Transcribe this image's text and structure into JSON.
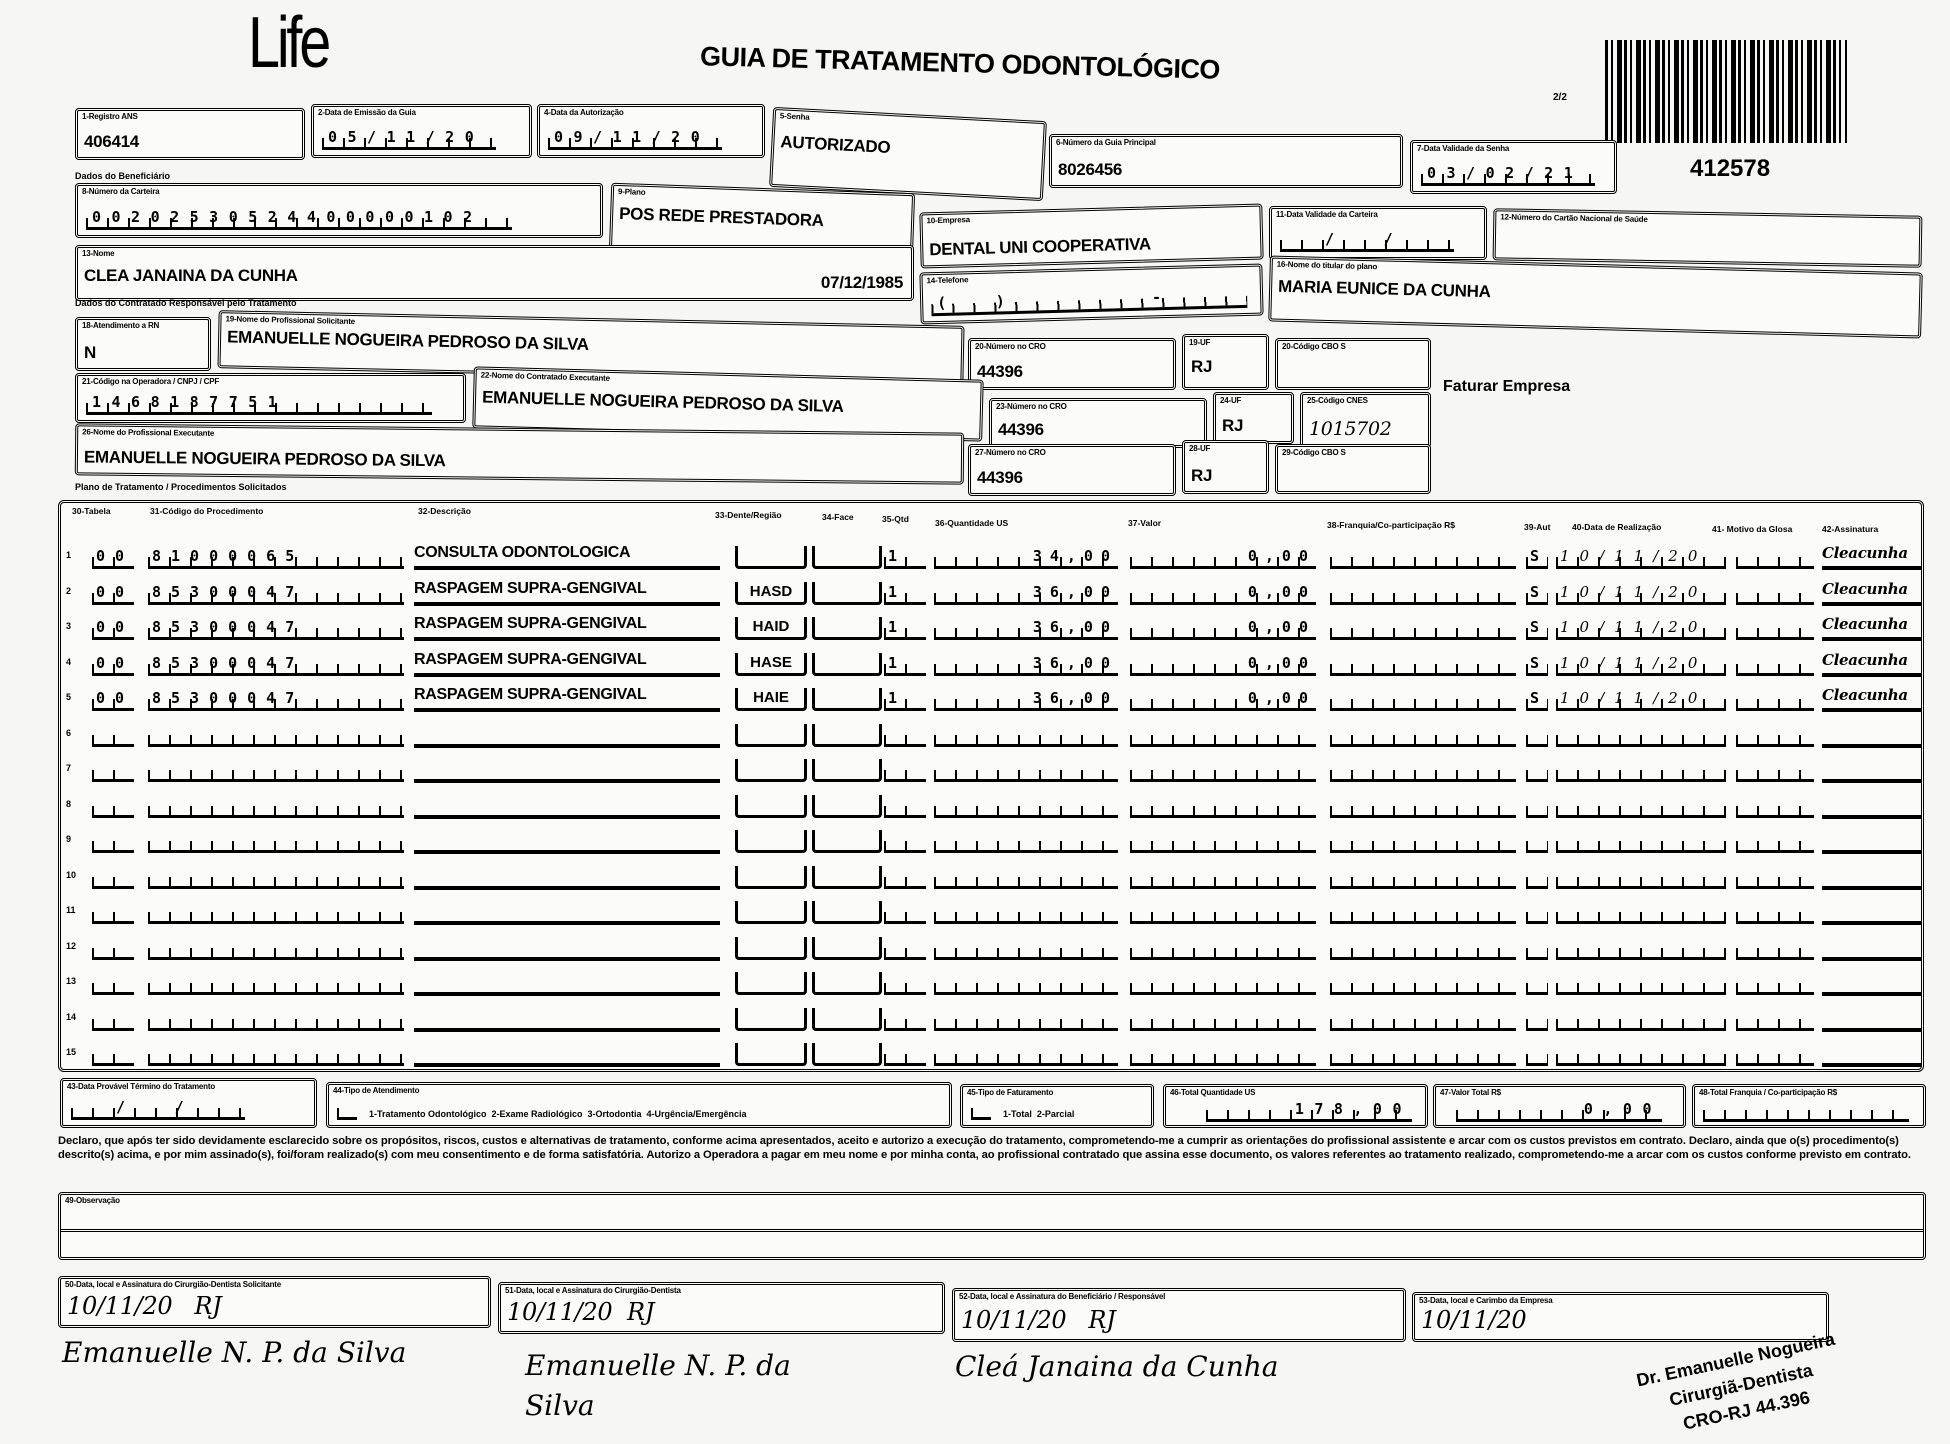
{
  "header": {
    "logo": "Life",
    "title": "GUIA DE TRATAMENTO ODONTOLÓGICO",
    "page": "2/2",
    "guide_number": "412578"
  },
  "fields": {
    "registro_ans": {
      "label": "1-Registro ANS",
      "value": "406414"
    },
    "data_emissao": {
      "label": "2-Data de Emissão da Guia",
      "value": "05/11/20"
    },
    "data_autorizacao": {
      "label": "4-Data da Autorização",
      "value": "09/11/20"
    },
    "senha": {
      "label": "5-Senha",
      "value": "AUTORIZADO"
    },
    "guia_principal": {
      "label": "6-Número da Guia Principal",
      "value": "8026456"
    },
    "validade_senha": {
      "label": "7-Data Validade da Senha",
      "value": "03/02/21"
    },
    "beneficiario_section": "Dados do Beneficiário",
    "carteira": {
      "label": "8-Número da Carteira",
      "value": "00202530524400000102"
    },
    "plano": {
      "label": "9-Plano",
      "value": "POS REDE PRESTADORA"
    },
    "empresa": {
      "label": "10-Empresa",
      "value": "DENTAL UNI  COOPERATIVA"
    },
    "validade_carteira": {
      "label": "11-Data Validade da Carteira",
      "value": "  /  /  "
    },
    "cartao_nacional": {
      "label": "12-Número do Cartão Nacional de Saúde",
      "value": ""
    },
    "nome": {
      "label": "13-Nome",
      "value": "CLEA JANAINA DA CUNHA",
      "birth_date": "07/12/1985"
    },
    "telefone": {
      "label": "14-Telefone",
      "value": "(  )       -    "
    },
    "titular": {
      "label": "16-Nome do titular do plano",
      "value": "MARIA EUNICE DA CUNHA"
    },
    "contratado_section": "Dados do Contratado Responsável pelo Tratamento",
    "atendimento_rn": {
      "label": "18-Atendimento a RN",
      "value": "N"
    },
    "profissional_solicitante": {
      "label": "19-Nome do Profissional Solicitante",
      "value": "EMANUELLE NOGUEIRA PEDROSO DA SILVA"
    },
    "cro_solicitante": {
      "label": "20-Número no CRO",
      "value": "44396"
    },
    "uf_solicitante": {
      "label": "19-UF",
      "value": "RJ"
    },
    "cbo_solicitante": {
      "label": "20-Código CBO S",
      "value": ""
    },
    "codigo_operadora": {
      "label": "21-Código na Operadora / CNPJ / CPF",
      "value": "1468187751   "
    },
    "contratado_executante": {
      "label": "22-Nome do Contratado Executante",
      "value": "EMANUELLE NOGUEIRA PEDROSO DA SILVA"
    },
    "cro_contratado": {
      "label": "23-Número no CRO",
      "value": "44396"
    },
    "uf_contratado": {
      "label": "24-UF",
      "value": "RJ"
    },
    "cnes": {
      "label": "25-Código CNES",
      "value": "1015702"
    },
    "faturar": "Faturar Empresa",
    "profissional_executante": {
      "label": "26-Nome do Profissional Executante",
      "value": "EMANUELLE NOGUEIRA PEDROSO DA SILVA"
    },
    "cro_executante": {
      "label": "27-Número no CRO",
      "value": "44396"
    },
    "uf_executante": {
      "label": "28-UF",
      "value": "RJ"
    },
    "cbo_executante": {
      "label": "29-Código CBO S",
      "value": ""
    }
  },
  "plan": {
    "section": "Plano de Tratamento / Procedimentos Solicitados",
    "headers": {
      "tabela": "30-Tabela",
      "codigo": "31-Código do Procedimento",
      "descricao": "32-Descrição",
      "dente": "33-Dente/Região",
      "face": "34-Face",
      "qtd": "35-Qtd",
      "qtd_us": "36-Quantidade US",
      "valor": "37-Valor",
      "franquia": "38-Franquia/Co-participação R$",
      "aut": "39-Aut",
      "data": "40-Data de Realização",
      "glosa": "41- Motivo da Glosa",
      "assinatura": "42-Assinatura"
    },
    "rows": [
      {
        "n": "1",
        "tabela": "00",
        "codigo": "81000065",
        "descricao": "CONSULTA ODONTOLOGICA",
        "dente": "",
        "face": "",
        "qtd": "1",
        "qtd_us": "34,00",
        "valor": "0,00",
        "franquia": "",
        "aut": "S",
        "data": "10/11/20",
        "glosa": "",
        "assinatura": "Cleacunha"
      },
      {
        "n": "2",
        "tabela": "00",
        "codigo": "85300047",
        "descricao": "RASPAGEM SUPRA-GENGIVAL",
        "dente": "HASD",
        "face": "",
        "qtd": "1",
        "qtd_us": "36,00",
        "valor": "0,00",
        "franquia": "",
        "aut": "S",
        "data": "10/11/20",
        "glosa": "",
        "assinatura": "Cleacunha"
      },
      {
        "n": "3",
        "tabela": "00",
        "codigo": "85300047",
        "descricao": "RASPAGEM SUPRA-GENGIVAL",
        "dente": "HAID",
        "face": "",
        "qtd": "1",
        "qtd_us": "36,00",
        "valor": "0,00",
        "franquia": "",
        "aut": "S",
        "data": "10/11/20",
        "glosa": "",
        "assinatura": "Cleacunha"
      },
      {
        "n": "4",
        "tabela": "00",
        "codigo": "85300047",
        "descricao": "RASPAGEM SUPRA-GENGIVAL",
        "dente": "HASE",
        "face": "",
        "qtd": "1",
        "qtd_us": "36,00",
        "valor": "0,00",
        "franquia": "",
        "aut": "S",
        "data": "10/11/20",
        "glosa": "",
        "assinatura": "Cleacunha"
      },
      {
        "n": "5",
        "tabela": "00",
        "codigo": "85300047",
        "descricao": "RASPAGEM SUPRA-GENGIVAL",
        "dente": "HAIE",
        "face": "",
        "qtd": "1",
        "qtd_us": "36,00",
        "valor": "0,00",
        "franquia": "",
        "aut": "S",
        "data": "10/11/20",
        "glosa": "",
        "assinatura": "Cleacunha"
      },
      {
        "n": "6",
        "tabela": "",
        "codigo": "",
        "descricao": "",
        "dente": "",
        "face": "",
        "qtd": "",
        "qtd_us": "",
        "valor": "",
        "franquia": "",
        "aut": "",
        "data": "",
        "glosa": "",
        "assinatura": ""
      },
      {
        "n": "7",
        "tabela": "",
        "codigo": "",
        "descricao": "",
        "dente": "",
        "face": "",
        "qtd": "",
        "qtd_us": "",
        "valor": "",
        "franquia": "",
        "aut": "",
        "data": "",
        "glosa": "",
        "assinatura": ""
      },
      {
        "n": "8",
        "tabela": "",
        "codigo": "",
        "descricao": "",
        "dente": "",
        "face": "",
        "qtd": "",
        "qtd_us": "",
        "valor": "",
        "franquia": "",
        "aut": "",
        "data": "",
        "glosa": "",
        "assinatura": ""
      },
      {
        "n": "9",
        "tabela": "",
        "codigo": "",
        "descricao": "",
        "dente": "",
        "face": "",
        "qtd": "",
        "qtd_us": "",
        "valor": "",
        "franquia": "",
        "aut": "",
        "data": "",
        "glosa": "",
        "assinatura": ""
      },
      {
        "n": "10",
        "tabela": "",
        "codigo": "",
        "descricao": "",
        "dente": "",
        "face": "",
        "qtd": "",
        "qtd_us": "",
        "valor": "",
        "franquia": "",
        "aut": "",
        "data": "",
        "glosa": "",
        "assinatura": ""
      },
      {
        "n": "11",
        "tabela": "",
        "codigo": "",
        "descricao": "",
        "dente": "",
        "face": "",
        "qtd": "",
        "qtd_us": "",
        "valor": "",
        "franquia": "",
        "aut": "",
        "data": "",
        "glosa": "",
        "assinatura": ""
      },
      {
        "n": "12",
        "tabela": "",
        "codigo": "",
        "descricao": "",
        "dente": "",
        "face": "",
        "qtd": "",
        "qtd_us": "",
        "valor": "",
        "franquia": "",
        "aut": "",
        "data": "",
        "glosa": "",
        "assinatura": ""
      },
      {
        "n": "13",
        "tabela": "",
        "codigo": "",
        "descricao": "",
        "dente": "",
        "face": "",
        "qtd": "",
        "qtd_us": "",
        "valor": "",
        "franquia": "",
        "aut": "",
        "data": "",
        "glosa": "",
        "assinatura": ""
      },
      {
        "n": "14",
        "tabela": "",
        "codigo": "",
        "descricao": "",
        "dente": "",
        "face": "",
        "qtd": "",
        "qtd_us": "",
        "valor": "",
        "franquia": "",
        "aut": "",
        "data": "",
        "glosa": "",
        "assinatura": ""
      },
      {
        "n": "15",
        "tabela": "",
        "codigo": "",
        "descricao": "",
        "dente": "",
        "face": "",
        "qtd": "",
        "qtd_us": "",
        "valor": "",
        "franquia": "",
        "aut": "",
        "data": "",
        "glosa": "",
        "assinatura": ""
      }
    ]
  },
  "totals": {
    "termino": {
      "label": "43-Data Provável Término do Tratamento",
      "value": "  /  /  "
    },
    "tipo_atendimento": {
      "label": "44-Tipo de Atendimento",
      "options": "1-Tratamento Odontológico  2-Exame Radiológico  3-Ortodontia  4-Urgência/Emergência",
      "value": ""
    },
    "tipo_faturamento": {
      "label": "45-Tipo de Faturamento",
      "options": "1-Total  2-Parcial",
      "value": ""
    },
    "total_us": {
      "label": "46-Total Quantidade US",
      "value": "178,00"
    },
    "valor_total": {
      "label": "47-Valor Total R$",
      "value": "0,00"
    },
    "total_franquia": {
      "label": "48-Total Franquia / Co-participação R$",
      "value": ""
    }
  },
  "declaration": "Declaro, que após ter sido devidamente esclarecido sobre os propósitos, riscos, custos e alternativas de tratamento, conforme acima apresentados, aceito e autorizo a execução do tratamento, comprometendo-me a cumprir as orientações do profissional assistente e arcar com os custos previstos em contrato. Declaro, ainda que o(s) procedimento(s) descrito(s) acima, e por mim assinado(s), foi/foram realizado(s) com meu consentimento e de forma satisfatória. Autorizo a Operadora a pagar em meu nome e por minha conta, ao profissional contratado que assina esse documento, os valores referentes ao tratamento realizado, comprometendo-me a arcar com os custos conforme previsto em contrato.",
  "observacao": {
    "label": "49-Observação",
    "value": ""
  },
  "signatures": [
    {
      "label": "50-Data, local e Assinatura do Cirurgião-Dentista Solicitante",
      "value": "10/11/20   RJ",
      "signature": "Emanuelle N. P. da Silva"
    },
    {
      "label": "51-Data, local e Assinatura do Cirurgião-Dentista",
      "value": "10/11/20  RJ",
      "signature": "Emanuelle N. P. da Silva"
    },
    {
      "label": "52-Data, local e Assinatura do Beneficiário / Responsável",
      "value": "10/11/20   RJ",
      "signature": "Cleá Janaina da Cunha"
    },
    {
      "label": "53-Data, local e Carimbo da Empresa",
      "value": "10/11/20",
      "signature": ""
    }
  ],
  "stamp": {
    "line1": "Dr. Emanuelle Nogueira",
    "line2": "Cirurgiã-Dentista",
    "line3": "CRO-RJ 44.396"
  }
}
